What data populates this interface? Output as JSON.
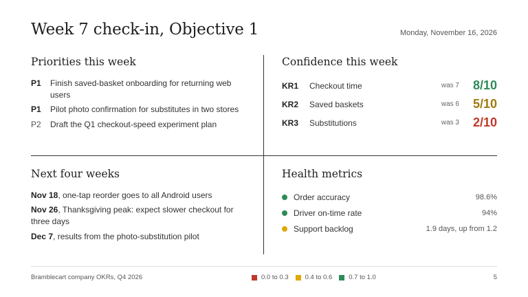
{
  "header": {
    "title": "Week 7 check-in, Objective 1",
    "date": "Monday, November 16, 2026"
  },
  "priorities": {
    "title": "Priorities this week",
    "items": [
      {
        "tag": "P1",
        "text": "Finish saved-basket onboarding for returning web users"
      },
      {
        "tag": "P1",
        "text": "Pilot photo confirmation for substitutes in two stores"
      },
      {
        "tag": "P2",
        "text": "Draft the Q1 checkout-speed experiment plan"
      }
    ]
  },
  "confidence": {
    "title": "Confidence this week",
    "items": [
      {
        "id": "KR1",
        "name": "Checkout time",
        "was": "was 7",
        "score": "8/10",
        "color": "#2e8b57"
      },
      {
        "id": "KR2",
        "name": "Saved baskets",
        "was": "was 6",
        "score": "5/10",
        "color": "#a07a10"
      },
      {
        "id": "KR3",
        "name": "Substitutions",
        "was": "was 3",
        "score": "2/10",
        "color": "#c0392b"
      }
    ]
  },
  "next": {
    "title": "Next four weeks",
    "items": [
      {
        "date": "Nov 18",
        "text": ", one-tap reorder goes to all Android users"
      },
      {
        "date": "Nov 26",
        "text": ", Thanksgiving peak: expect slower checkout for three days"
      },
      {
        "date": "Dec 7",
        "text": ", results from the photo-substitution pilot"
      }
    ]
  },
  "health": {
    "title": "Health metrics",
    "items": [
      {
        "name": "Order accuracy",
        "value": "98.6%",
        "color": "#2e8b57"
      },
      {
        "name": "Driver on-time rate",
        "value": "94%",
        "color": "#2e8b57"
      },
      {
        "name": "Support backlog",
        "value": "1.9 days, up from 1.2",
        "color": "#e0a800"
      }
    ]
  },
  "footer": {
    "left": "Bramblecart company OKRs, Q4 2026",
    "legend": [
      {
        "label": "0.0 to 0.3",
        "color": "#c0392b"
      },
      {
        "label": "0.4 to 0.6",
        "color": "#e0a800"
      },
      {
        "label": "0.7 to 1.0",
        "color": "#2e8b57"
      }
    ],
    "page": "5"
  }
}
